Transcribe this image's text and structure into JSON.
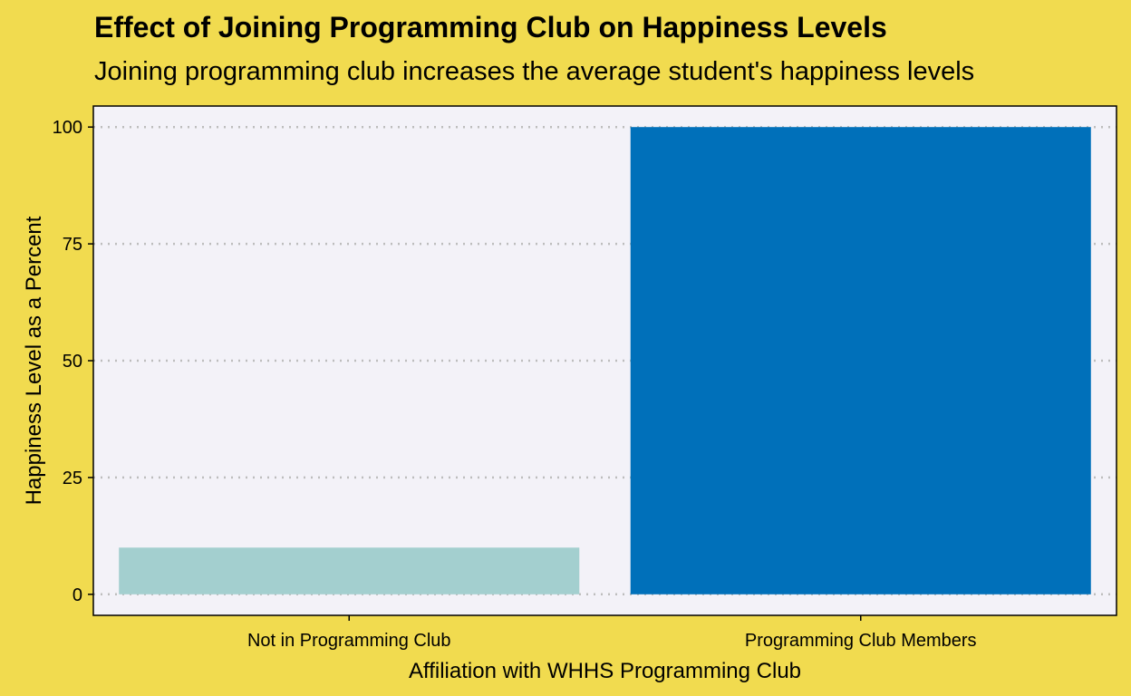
{
  "chart_data": {
    "type": "bar",
    "title": "Effect of Joining Programming Club on Happiness Levels",
    "subtitle": "Joining programming club increases the average student's happiness levels",
    "xlabel": "Affiliation with WHHS Programming Club",
    "ylabel": "Happiness Level as a Percent",
    "categories": [
      "Not in Programming Club",
      "Programming Club Members"
    ],
    "values": [
      10,
      100
    ],
    "bar_colors": [
      "#a3cfcf",
      "#0070ba"
    ],
    "ylim": [
      -4.5,
      104.5
    ],
    "yticks": [
      0,
      25,
      50,
      75,
      100
    ],
    "grid": "horizontal dotted",
    "legend": "none"
  },
  "colors": {
    "page_background": "#f1db4f",
    "panel_background": "#f3f2f8",
    "grid": "#bdbdbd"
  }
}
